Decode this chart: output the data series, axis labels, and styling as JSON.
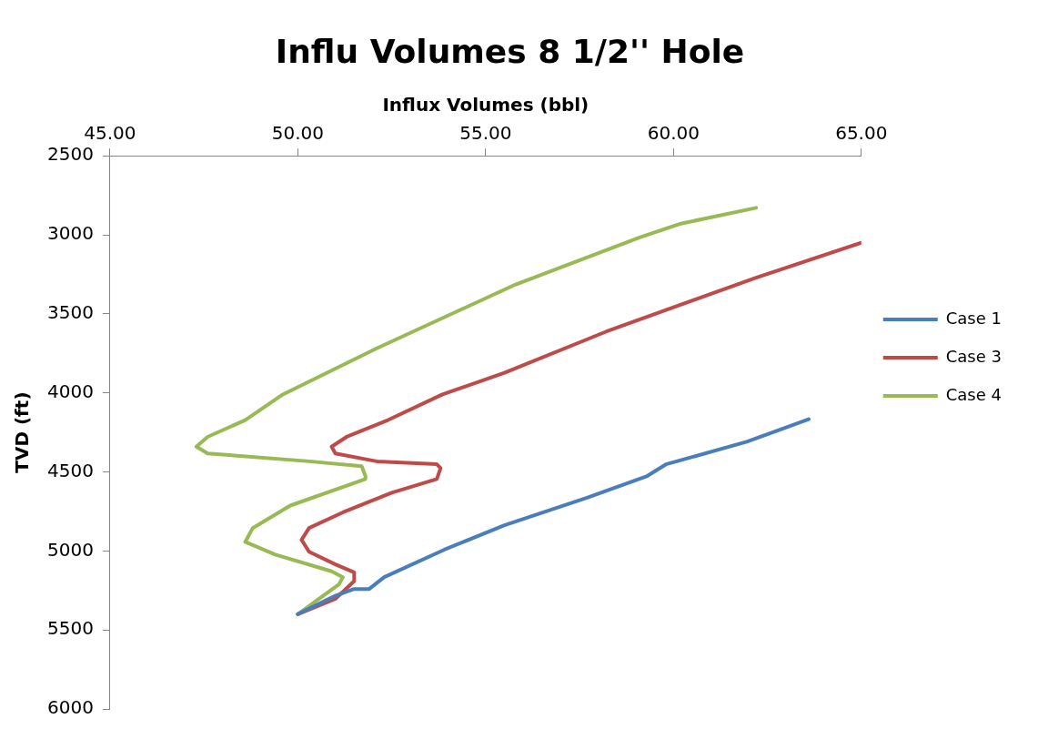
{
  "chart_data": {
    "type": "line",
    "title": "Influ Volumes 8 1/2'' Hole",
    "xlabel": "Influx Volumes (bbl)",
    "ylabel": "TVD (ft)",
    "xlim": [
      45,
      65
    ],
    "xticks": [
      {
        "value": 45,
        "label": "45.00"
      },
      {
        "value": 50,
        "label": "50.00"
      },
      {
        "value": 55,
        "label": "55.00"
      },
      {
        "value": 60,
        "label": "60.00"
      },
      {
        "value": 65,
        "label": "65.00"
      }
    ],
    "ylim": [
      6000,
      2500
    ],
    "yticks": [
      2500,
      3000,
      3500,
      4000,
      4500,
      5000,
      5500,
      6000
    ],
    "grid": false,
    "legend": "right",
    "marker": "none",
    "line_style": "solid",
    "series": [
      {
        "name": "Case 1",
        "color": "#4a7ebb",
        "x": [
          50.0,
          51.0,
          51.5,
          51.9,
          52.3,
          53.9,
          55.5,
          57.7,
          59.3,
          59.8,
          61.95,
          63.6
        ],
        "values": [
          5400,
          5284,
          5241,
          5241,
          5166,
          4992,
          4837,
          4663,
          4526,
          4452,
          4309,
          4166
        ]
      },
      {
        "name": "Case 3",
        "color": "#be4b48",
        "x": [
          50.0,
          51.0,
          51.5,
          51.5,
          51.0,
          50.3,
          50.1,
          50.3,
          51.2,
          52.5,
          53.7,
          53.8,
          53.7,
          52.1,
          51.0,
          50.9,
          51.3,
          52.4,
          53.85,
          55.5,
          58.2,
          62.2,
          65.0
        ],
        "values": [
          5400,
          5303,
          5191,
          5135,
          5085,
          5005,
          4930,
          4855,
          4756,
          4632,
          4545,
          4476,
          4451,
          4433,
          4383,
          4340,
          4278,
          4172,
          4010,
          3873,
          3613,
          3271,
          3050
        ]
      },
      {
        "name": "Case 4",
        "color": "#98b954",
        "x": [
          50.0,
          51.1,
          51.2,
          50.9,
          49.4,
          48.6,
          48.8,
          49.8,
          51.8,
          51.8,
          51.7,
          50.3,
          47.6,
          47.3,
          47.6,
          48.6,
          49.6,
          52.1,
          55.8,
          59.1,
          60.2,
          62.2
        ],
        "values": [
          5400,
          5210,
          5166,
          5129,
          5023,
          4943,
          4855,
          4713,
          4545,
          4526,
          4464,
          4433,
          4383,
          4340,
          4278,
          4172,
          4010,
          3718,
          3314,
          3016,
          2929,
          2829
        ]
      }
    ]
  }
}
